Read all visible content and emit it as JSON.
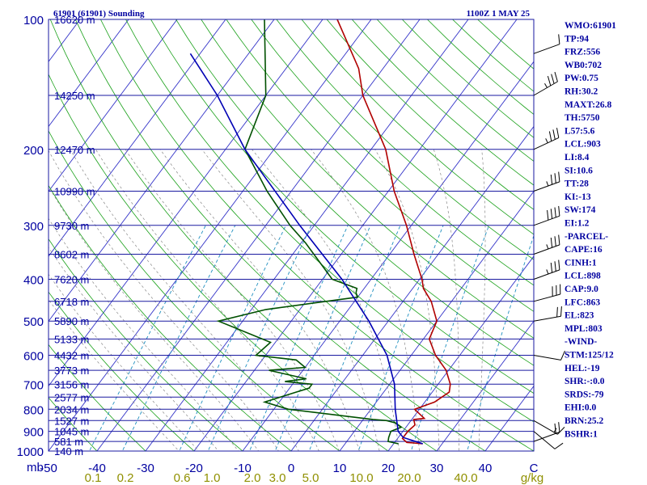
{
  "header": {
    "station": "61901 (61901) Sounding",
    "time": "1100Z  1 MAY 25"
  },
  "indices": [
    "WMO:61901",
    "TP:94",
    "FRZ:556",
    "WB0:702",
    "PW:0.75",
    "RH:30.2",
    "MAXT:26.8",
    "TH:5750",
    "L57:5.6",
    "LCL:903",
    "LI:8.4",
    "SI:10.6",
    "TT:28",
    "KI:-13",
    "SW:174",
    "EI:1.2",
    "-PARCEL-",
    "CAPE:16",
    "CINH:1",
    "LCL:898",
    "CAP:9.0",
    "LFC:863",
    "EL:823",
    "MPL:803",
    "-WIND-",
    "STM:125/12",
    "HEL:-19",
    "SHR:-:0.0",
    "SRDS:-79",
    "EHI:0.0",
    "BRN:25.2",
    "BSHR:1"
  ],
  "colors": {
    "isobar": "#1a1aa0",
    "isotherm": "#3333c8",
    "dry_adiabat": "#19a019",
    "moist_adiabat": "#888888",
    "mixing_ratio": "#1f8fbf",
    "temperature": "#b00000",
    "dewpoint": "#005000",
    "parcel": "#0000b4",
    "text": "#0000a0",
    "mixing_label": "#909000"
  },
  "chart_data": {
    "type": "line",
    "title": "61901 (61901) Sounding",
    "xlabel": "",
    "ylabel": "mb",
    "xlim": [
      -50,
      50
    ],
    "ylim": [
      1000,
      100
    ],
    "y_scale": "log",
    "pressure_ticks": [
      100,
      200,
      300,
      400,
      500,
      600,
      700,
      800,
      900,
      1000
    ],
    "temperature_ticks": [
      -50,
      -40,
      -30,
      -20,
      -10,
      0,
      10,
      20,
      30,
      40
    ],
    "mixing_ratio_labels": [
      "0.1",
      "0.2",
      "0.6",
      "1.0",
      "2.0",
      "3.0",
      "5.0",
      "10.0",
      "20.0",
      "40.0",
      "g/kg"
    ],
    "height_labels": [
      {
        "p": 100,
        "label": "16620 m"
      },
      {
        "p": 150,
        "label": "14250 m"
      },
      {
        "p": 200,
        "label": "12470 m"
      },
      {
        "p": 250,
        "label": "10990 m"
      },
      {
        "p": 300,
        "label": "9730 m"
      },
      {
        "p": 350,
        "label": "8602 m"
      },
      {
        "p": 400,
        "label": "7620 m"
      },
      {
        "p": 450,
        "label": "6718 m"
      },
      {
        "p": 500,
        "label": "5890 m"
      },
      {
        "p": 550,
        "label": "5133 m"
      },
      {
        "p": 600,
        "label": "4432 m"
      },
      {
        "p": 650,
        "label": "3773 m"
      },
      {
        "p": 700,
        "label": "3156 m"
      },
      {
        "p": 750,
        "label": "2577 m"
      },
      {
        "p": 800,
        "label": "2034 m"
      },
      {
        "p": 850,
        "label": "1527 m"
      },
      {
        "p": 900,
        "label": "1045 m"
      },
      {
        "p": 950,
        "label": "581 m"
      },
      {
        "p": 1000,
        "label": "140 m"
      }
    ],
    "series": [
      {
        "key": "temperature",
        "points": [
          [
            962,
            26.0
          ],
          [
            955,
            22.5
          ],
          [
            935,
            21.0
          ],
          [
            900,
            21.0
          ],
          [
            870,
            21.5
          ],
          [
            845,
            20.4
          ],
          [
            840,
            22.4
          ],
          [
            800,
            19.0
          ],
          [
            770,
            22.0
          ],
          [
            730,
            23.5
          ],
          [
            700,
            22.5
          ],
          [
            650,
            19.5
          ],
          [
            600,
            15.0
          ],
          [
            550,
            11.2
          ],
          [
            500,
            10.0
          ],
          [
            450,
            5.8
          ],
          [
            420,
            2.2
          ],
          [
            400,
            0.5
          ],
          [
            350,
            -5.0
          ],
          [
            300,
            -11.0
          ],
          [
            250,
            -18.8
          ],
          [
            200,
            -27.0
          ],
          [
            150,
            -40.0
          ],
          [
            130,
            -45.0
          ],
          [
            100,
            -57.0
          ]
        ]
      },
      {
        "key": "dewpoint",
        "points": [
          [
            962,
            21.0
          ],
          [
            950,
            18.5
          ],
          [
            930,
            18.0
          ],
          [
            900,
            17.5
          ],
          [
            880,
            19.0
          ],
          [
            860,
            17.0
          ],
          [
            850,
            15.0
          ],
          [
            845,
            12.0
          ],
          [
            800,
            -7.0
          ],
          [
            770,
            -13.0
          ],
          [
            730,
            -8.0
          ],
          [
            715,
            -6.0
          ],
          [
            700,
            -6.0
          ],
          [
            690,
            -12.0
          ],
          [
            680,
            -8.0
          ],
          [
            650,
            -17.0
          ],
          [
            640,
            -10.0
          ],
          [
            615,
            -13.0
          ],
          [
            600,
            -22.0
          ],
          [
            560,
            -21.0
          ],
          [
            500,
            -35.0
          ],
          [
            470,
            -27.0
          ],
          [
            440,
            -10.0
          ],
          [
            430,
            -11.0
          ],
          [
            420,
            -11.5
          ],
          [
            400,
            -18.0
          ],
          [
            330,
            -29.0
          ],
          [
            300,
            -35.0
          ],
          [
            250,
            -45.0
          ],
          [
            200,
            -56.0
          ],
          [
            150,
            -60.0
          ],
          [
            100,
            -72.0
          ]
        ]
      },
      {
        "key": "parcel",
        "points": [
          [
            962,
            26.0
          ],
          [
            930,
            21.0
          ],
          [
            900,
            19.0
          ],
          [
            800,
            15.0
          ],
          [
            700,
            11.0
          ],
          [
            600,
            5.0
          ],
          [
            500,
            -4.0
          ],
          [
            400,
            -16.0
          ],
          [
            300,
            -33.0
          ],
          [
            200,
            -56.0
          ],
          [
            150,
            -70.0
          ],
          [
            120,
            -82.0
          ]
        ]
      }
    ],
    "wind_barbs": [
      {
        "p": 120,
        "speed": 10,
        "dir": 250
      },
      {
        "p": 150,
        "speed": 35,
        "dir": 240
      },
      {
        "p": 200,
        "speed": 35,
        "dir": 245
      },
      {
        "p": 250,
        "speed": 35,
        "dir": 250
      },
      {
        "p": 300,
        "speed": 40,
        "dir": 250
      },
      {
        "p": 350,
        "speed": 35,
        "dir": 250
      },
      {
        "p": 400,
        "speed": 35,
        "dir": 250
      },
      {
        "p": 450,
        "speed": 30,
        "dir": 255
      },
      {
        "p": 500,
        "speed": 20,
        "dir": 260
      },
      {
        "p": 600,
        "speed": 10,
        "dir": 280
      },
      {
        "p": 850,
        "speed": 15,
        "dir": 300
      },
      {
        "p": 900,
        "speed": 10,
        "dir": 310
      },
      {
        "p": 950,
        "speed": 20,
        "dir": 250
      }
    ],
    "grid": true
  }
}
